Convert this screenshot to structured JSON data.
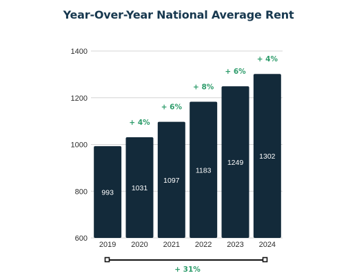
{
  "chart_data": {
    "type": "bar",
    "title": "Year-Over-Year National Average Rent",
    "categories": [
      "2019",
      "2020",
      "2021",
      "2022",
      "2023",
      "2024"
    ],
    "values": [
      993,
      1031,
      1097,
      1183,
      1249,
      1302
    ],
    "value_labels": [
      "993",
      "1031",
      "1097",
      "1183",
      "1249",
      "1302"
    ],
    "growth_labels": [
      "",
      "+ 4%",
      "+ 6%",
      "+ 8%",
      "+ 6%",
      "+ 4%"
    ],
    "total_change_label": "+ 31%",
    "ylim": [
      600,
      1400
    ],
    "yticks": [
      600,
      800,
      1000,
      1200,
      1400
    ],
    "xlabel": "",
    "ylabel": "",
    "grid": true,
    "colors": {
      "bar": "#132a3a",
      "growth": "#2e9c6b",
      "title": "#17384f",
      "axis_text": "#2b2b2b",
      "grid": "#d4d4d4",
      "bracket": "#111111"
    }
  }
}
